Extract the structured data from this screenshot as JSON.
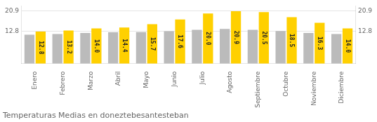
{
  "chart_data": {
    "type": "bar",
    "title": "Temperaturas Medias en doneztebesantesteban",
    "categories": [
      "Enero",
      "Febrero",
      "Marzo",
      "Abril",
      "Mayo",
      "Junio",
      "Julio",
      "Agosto",
      "Septiembre",
      "Octubre",
      "Noviembre",
      "Diciembre"
    ],
    "series": [
      {
        "color": "#BBBBBB",
        "values": [
          11.5,
          11.8,
          12.2,
          12.5,
          12.6,
          12.9,
          13.5,
          13.8,
          13.5,
          13.0,
          12.2,
          11.8
        ]
      },
      {
        "color": "#FFD000",
        "values": [
          12.8,
          13.2,
          14.0,
          14.4,
          15.7,
          17.6,
          20.0,
          20.9,
          20.5,
          18.5,
          16.3,
          14.0
        ],
        "value_labels": [
          "12.8",
          "13.2",
          "14.0",
          "14.4",
          "15.7",
          "17.6",
          "20.0",
          "20.9",
          "20.5",
          "18.5",
          "16.3",
          "14.0"
        ]
      }
    ],
    "ylim": [
      0,
      23.0
    ],
    "yticks": [
      12.8,
      20.9
    ],
    "y2lim": [
      0,
      23.0
    ],
    "y2ticks": [
      12.8,
      20.9
    ],
    "grid": true,
    "data_labels": true
  }
}
